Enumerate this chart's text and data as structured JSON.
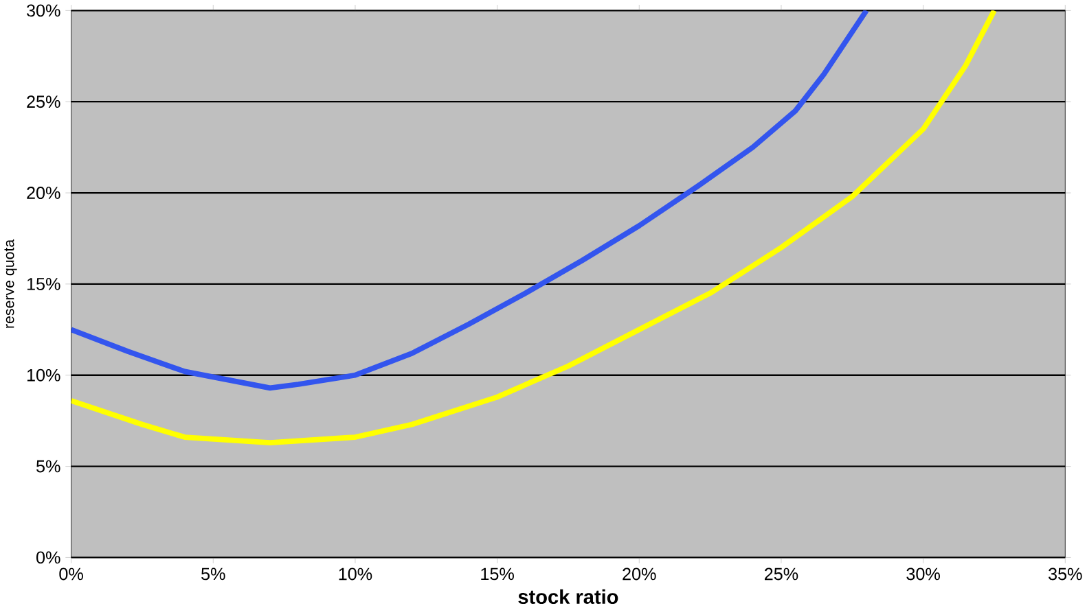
{
  "chart_data": {
    "type": "line",
    "xlabel": "stock ratio",
    "ylabel": "reserve quota",
    "xlim": [
      0,
      35
    ],
    "ylim": [
      0,
      30
    ],
    "xticks": [
      {
        "value": 0,
        "label": "0%"
      },
      {
        "value": 5,
        "label": "5%"
      },
      {
        "value": 10,
        "label": "10%"
      },
      {
        "value": 15,
        "label": "15%"
      },
      {
        "value": 20,
        "label": "20%"
      },
      {
        "value": 25,
        "label": "25%"
      },
      {
        "value": 30,
        "label": "30%"
      },
      {
        "value": 35,
        "label": "35%"
      }
    ],
    "yticks": [
      {
        "value": 0,
        "label": "0%"
      },
      {
        "value": 5,
        "label": "5%"
      },
      {
        "value": 10,
        "label": "10%"
      },
      {
        "value": 15,
        "label": "15%"
      },
      {
        "value": 20,
        "label": "20%"
      },
      {
        "value": 25,
        "label": "25%"
      },
      {
        "value": 30,
        "label": "30%"
      }
    ],
    "grid": "y",
    "marker": "none",
    "series": [
      {
        "color": "#3355ee",
        "x": [
          0,
          2,
          4,
          6,
          7,
          8,
          10,
          12,
          14,
          16,
          18,
          20,
          22,
          24,
          25.5,
          26.5,
          28
        ],
        "values": [
          12.5,
          11.3,
          10.2,
          9.6,
          9.3,
          9.5,
          10,
          11.2,
          12.8,
          14.5,
          16.3,
          18.2,
          20.3,
          22.5,
          24.5,
          26.5,
          30
        ]
      },
      {
        "color": "#ffff00",
        "x": [
          0,
          2.5,
          4,
          7,
          10,
          12,
          15,
          17.5,
          20,
          22.5,
          25,
          27.5,
          30,
          31.5,
          32.5
        ],
        "values": [
          8.6,
          7.3,
          6.6,
          6.3,
          6.6,
          7.3,
          8.8,
          10.5,
          12.5,
          14.5,
          17,
          19.8,
          23.5,
          27,
          30
        ]
      }
    ]
  }
}
